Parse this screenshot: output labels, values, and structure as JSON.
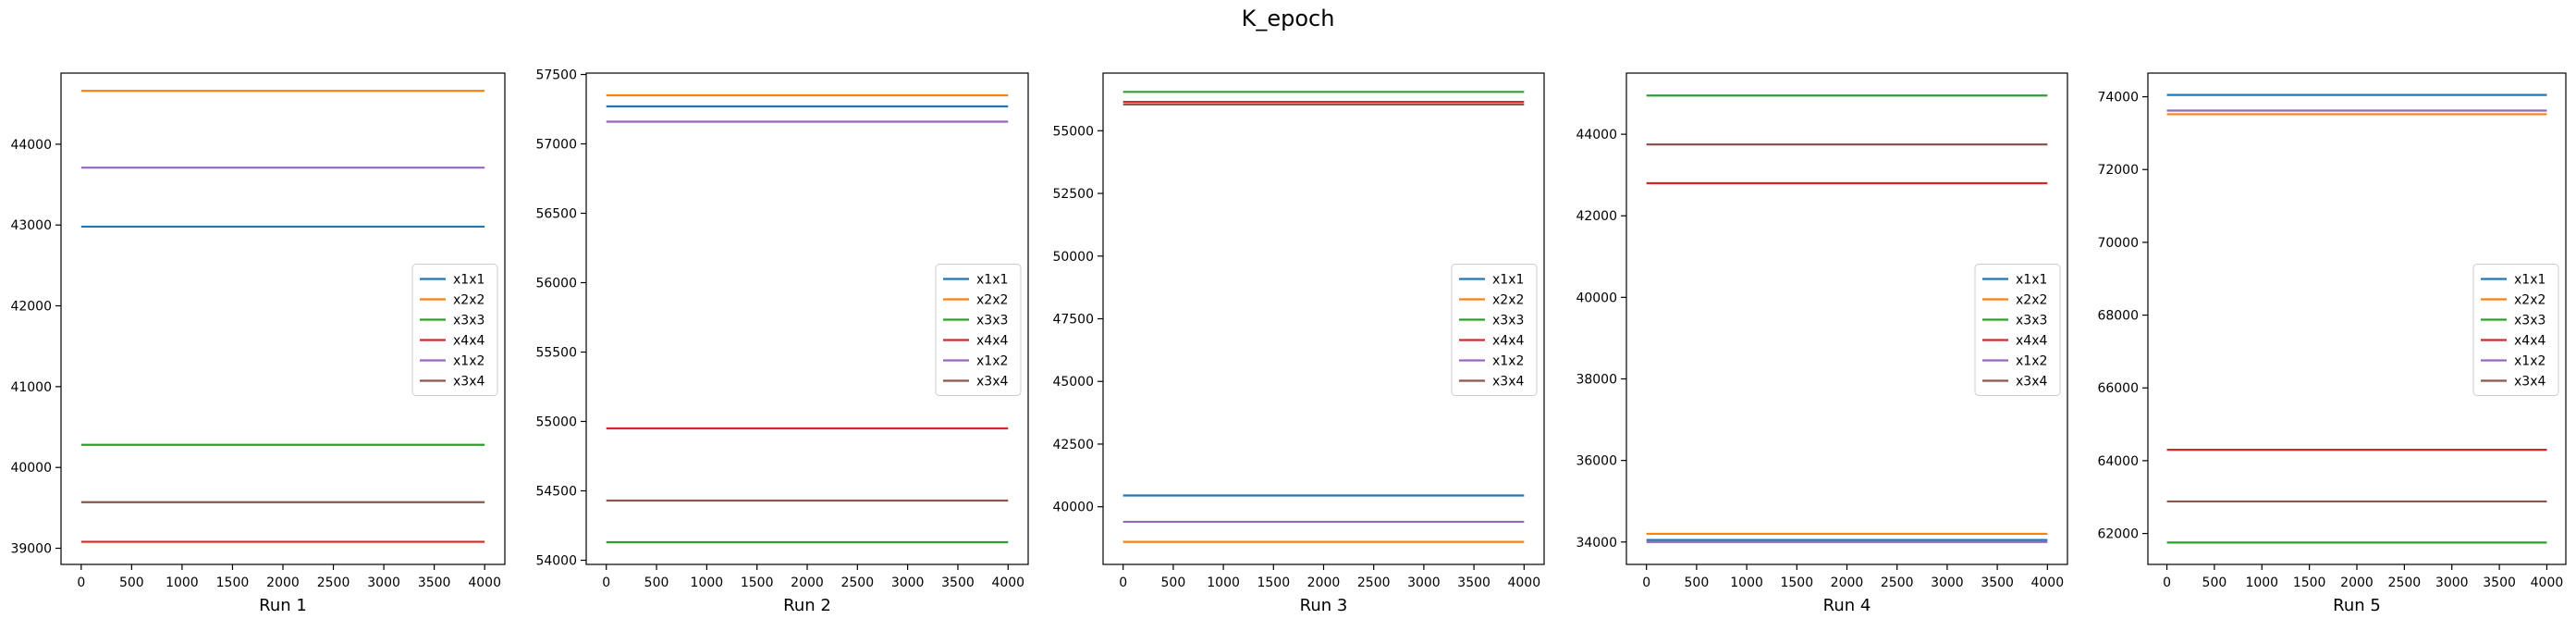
{
  "figure": {
    "suptitle": "K_epoch"
  },
  "chart_data": [
    {
      "type": "line",
      "title": "",
      "xlabel": "Run 1",
      "ylabel": "",
      "xlim": [
        -200,
        4200
      ],
      "ylim": [
        38800,
        44880
      ],
      "xticks": [
        0,
        500,
        1000,
        1500,
        2000,
        2500,
        3000,
        3500,
        4000
      ],
      "yticks": [
        39000,
        40000,
        41000,
        42000,
        43000,
        44000
      ],
      "grid": false,
      "legend": "center-right",
      "series": [
        {
          "name": "x1x1",
          "color": "#1f77b4",
          "x": [
            0,
            4000
          ],
          "y": [
            42980,
            42980
          ]
        },
        {
          "name": "x2x2",
          "color": "#ff7f0e",
          "x": [
            0,
            4000
          ],
          "y": [
            44660,
            44660
          ]
        },
        {
          "name": "x3x3",
          "color": "#2ca02c",
          "x": [
            0,
            4000
          ],
          "y": [
            40280,
            40280
          ]
        },
        {
          "name": "x4x4",
          "color": "#d62728",
          "x": [
            0,
            4000
          ],
          "y": [
            39080,
            39080
          ]
        },
        {
          "name": "x1x2",
          "color": "#9467bd",
          "x": [
            0,
            4000
          ],
          "y": [
            43710,
            43710
          ]
        },
        {
          "name": "x3x4",
          "color": "#8c564b",
          "x": [
            0,
            4000
          ],
          "y": [
            39570,
            39570
          ]
        }
      ]
    },
    {
      "type": "line",
      "title": "",
      "xlabel": "Run 2",
      "ylabel": "",
      "xlim": [
        -200,
        4200
      ],
      "ylim": [
        53970,
        57510
      ],
      "xticks": [
        0,
        500,
        1000,
        1500,
        2000,
        2500,
        3000,
        3500,
        4000
      ],
      "yticks": [
        54000,
        54500,
        55000,
        55500,
        56000,
        56500,
        57000,
        57500
      ],
      "grid": false,
      "legend": "center-right",
      "series": [
        {
          "name": "x1x1",
          "color": "#1f77b4",
          "x": [
            0,
            4000
          ],
          "y": [
            57270,
            57270
          ]
        },
        {
          "name": "x2x2",
          "color": "#ff7f0e",
          "x": [
            0,
            4000
          ],
          "y": [
            57350,
            57350
          ]
        },
        {
          "name": "x3x3",
          "color": "#2ca02c",
          "x": [
            0,
            4000
          ],
          "y": [
            54130,
            54130
          ]
        },
        {
          "name": "x4x4",
          "color": "#d62728",
          "x": [
            0,
            4000
          ],
          "y": [
            54950,
            54950
          ]
        },
        {
          "name": "x1x2",
          "color": "#9467bd",
          "x": [
            0,
            4000
          ],
          "y": [
            57160,
            57160
          ]
        },
        {
          "name": "x3x4",
          "color": "#8c564b",
          "x": [
            0,
            4000
          ],
          "y": [
            54430,
            54430
          ]
        }
      ]
    },
    {
      "type": "line",
      "title": "",
      "xlabel": "Run 3",
      "ylabel": "",
      "xlim": [
        -200,
        4200
      ],
      "ylim": [
        37700,
        57300
      ],
      "xticks": [
        0,
        500,
        1000,
        1500,
        2000,
        2500,
        3000,
        3500,
        4000
      ],
      "yticks": [
        40000,
        42500,
        45000,
        47500,
        50000,
        52500,
        55000
      ],
      "grid": false,
      "legend": "center-right",
      "series": [
        {
          "name": "x1x1",
          "color": "#1f77b4",
          "x": [
            0,
            4000
          ],
          "y": [
            40450,
            40450
          ]
        },
        {
          "name": "x2x2",
          "color": "#ff7f0e",
          "x": [
            0,
            4000
          ],
          "y": [
            38600,
            38600
          ]
        },
        {
          "name": "x3x3",
          "color": "#2ca02c",
          "x": [
            0,
            4000
          ],
          "y": [
            56550,
            56550
          ]
        },
        {
          "name": "x4x4",
          "color": "#d62728",
          "x": [
            0,
            4000
          ],
          "y": [
            56150,
            56150
          ]
        },
        {
          "name": "x1x2",
          "color": "#9467bd",
          "x": [
            0,
            4000
          ],
          "y": [
            39400,
            39400
          ]
        },
        {
          "name": "x3x4",
          "color": "#8c564b",
          "x": [
            0,
            4000
          ],
          "y": [
            56050,
            56050
          ]
        }
      ]
    },
    {
      "type": "line",
      "title": "",
      "xlabel": "Run 4",
      "ylabel": "",
      "xlim": [
        -200,
        4200
      ],
      "ylim": [
        33450,
        45500
      ],
      "xticks": [
        0,
        500,
        1000,
        1500,
        2000,
        2500,
        3000,
        3500,
        4000
      ],
      "yticks": [
        34000,
        36000,
        38000,
        40000,
        42000,
        44000
      ],
      "grid": false,
      "legend": "center-right",
      "series": [
        {
          "name": "x1x1",
          "color": "#1f77b4",
          "x": [
            0,
            4000
          ],
          "y": [
            34050,
            34050
          ]
        },
        {
          "name": "x2x2",
          "color": "#ff7f0e",
          "x": [
            0,
            4000
          ],
          "y": [
            34200,
            34200
          ]
        },
        {
          "name": "x3x3",
          "color": "#2ca02c",
          "x": [
            0,
            4000
          ],
          "y": [
            44950,
            44950
          ]
        },
        {
          "name": "x4x4",
          "color": "#d62728",
          "x": [
            0,
            4000
          ],
          "y": [
            42800,
            42800
          ]
        },
        {
          "name": "x1x2",
          "color": "#9467bd",
          "x": [
            0,
            4000
          ],
          "y": [
            34000,
            34000
          ]
        },
        {
          "name": "x3x4",
          "color": "#8c564b",
          "x": [
            0,
            4000
          ],
          "y": [
            43750,
            43750
          ]
        }
      ]
    },
    {
      "type": "line",
      "title": "",
      "xlabel": "Run 5",
      "ylabel": "",
      "xlim": [
        -200,
        4200
      ],
      "ylim": [
        61150,
        74650
      ],
      "xticks": [
        0,
        500,
        1000,
        1500,
        2000,
        2500,
        3000,
        3500,
        4000
      ],
      "yticks": [
        62000,
        64000,
        66000,
        68000,
        70000,
        72000,
        74000
      ],
      "grid": false,
      "legend": "center-right",
      "series": [
        {
          "name": "x1x1",
          "color": "#1f77b4",
          "x": [
            0,
            4000
          ],
          "y": [
            74050,
            74050
          ]
        },
        {
          "name": "x2x2",
          "color": "#ff7f0e",
          "x": [
            0,
            4000
          ],
          "y": [
            73520,
            73520
          ]
        },
        {
          "name": "x3x3",
          "color": "#2ca02c",
          "x": [
            0,
            4000
          ],
          "y": [
            61750,
            61750
          ]
        },
        {
          "name": "x4x4",
          "color": "#d62728",
          "x": [
            0,
            4000
          ],
          "y": [
            64300,
            64300
          ]
        },
        {
          "name": "x1x2",
          "color": "#9467bd",
          "x": [
            0,
            4000
          ],
          "y": [
            73620,
            73620
          ]
        },
        {
          "name": "x3x4",
          "color": "#8c564b",
          "x": [
            0,
            4000
          ],
          "y": [
            62880,
            62880
          ]
        }
      ]
    }
  ]
}
